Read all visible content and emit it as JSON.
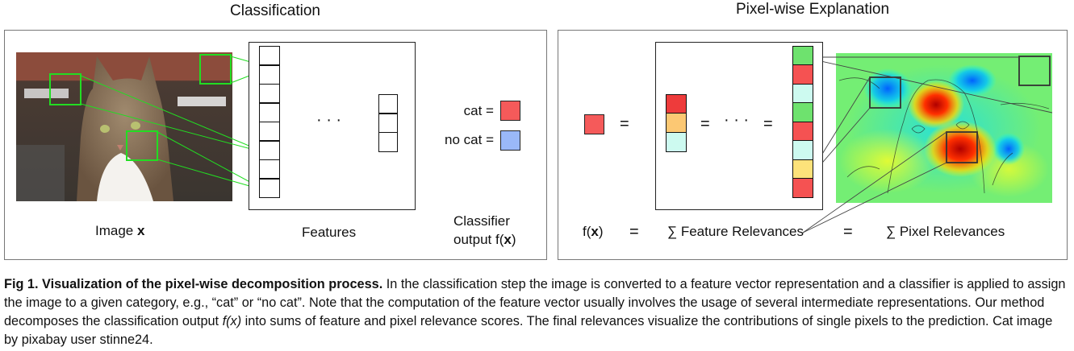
{
  "left_panel": {
    "title": "Classification",
    "image_label": "Image",
    "image_label_var": "x",
    "features_label": "Features",
    "classifier_label_line1": "Classifier",
    "classifier_label_line2": "output f(",
    "classifier_label_var": "x",
    "classifier_label_end": ")",
    "outputs": [
      {
        "label": "cat =",
        "color": "#f55a5a"
      },
      {
        "label": "no cat =",
        "color": "#9ab8f8"
      }
    ],
    "dots": "· · ·",
    "highlight_color": "#22dd22"
  },
  "right_panel": {
    "title": "Pixel-wise Explanation",
    "output_color": "#f55a5a",
    "eq": "=",
    "dots": "· · ·",
    "small_column_colors": [
      "#ee3b3b",
      "#fcc873",
      "#cdfaf0"
    ],
    "feature_column_colors": [
      "#6ee26e",
      "#f55252",
      "#cdfaf0",
      "#6ee26e",
      "#f55252",
      "#cdfaf0",
      "#fde27a",
      "#f55252"
    ],
    "formula": {
      "fx": "f(",
      "fx_var": "x",
      "fx_end": ")",
      "eq1": "=",
      "sum1": "∑ Feature Relevances",
      "eq2": "=",
      "sum2": "∑ Pixel Relevances"
    }
  },
  "caption": {
    "bold": "Fig 1. Visualization of the pixel-wise decomposition process.",
    "text1": " In the classification step the image is converted to a feature vector representation and a classifier is applied to assign the image to a given category, e.g., “cat” or “no cat”. Note that the computation of the feature vector usually involves the usage of several intermediate representations. Our method decomposes the classification output ",
    "italic": "f(x)",
    "text2": " into sums of feature and pixel relevance scores. The final relevances visualize the contributions of single pixels to the prediction. Cat image by pixabay user stinne24."
  }
}
